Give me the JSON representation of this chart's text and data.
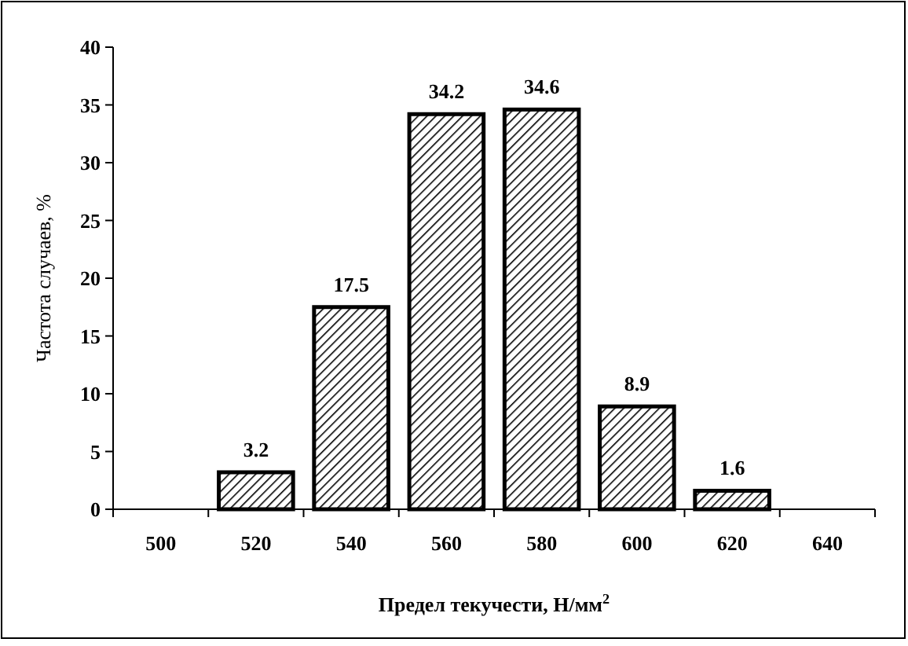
{
  "chart_data": {
    "type": "bar",
    "xlabel": "Предел текучести, Н/мм$^{2}$",
    "ylabel": "Частота случаев, %",
    "categories": [
      "500",
      "520",
      "540",
      "560",
      "580",
      "600",
      "620",
      "640"
    ],
    "values": [
      null,
      3.2,
      17.5,
      34.2,
      34.6,
      8.9,
      1.6,
      null
    ],
    "color": "#000000",
    "ylim": [
      0,
      40
    ],
    "yticks": [
      0,
      5,
      10,
      15,
      20,
      25,
      30,
      35,
      40
    ],
    "data_labels": true
  }
}
